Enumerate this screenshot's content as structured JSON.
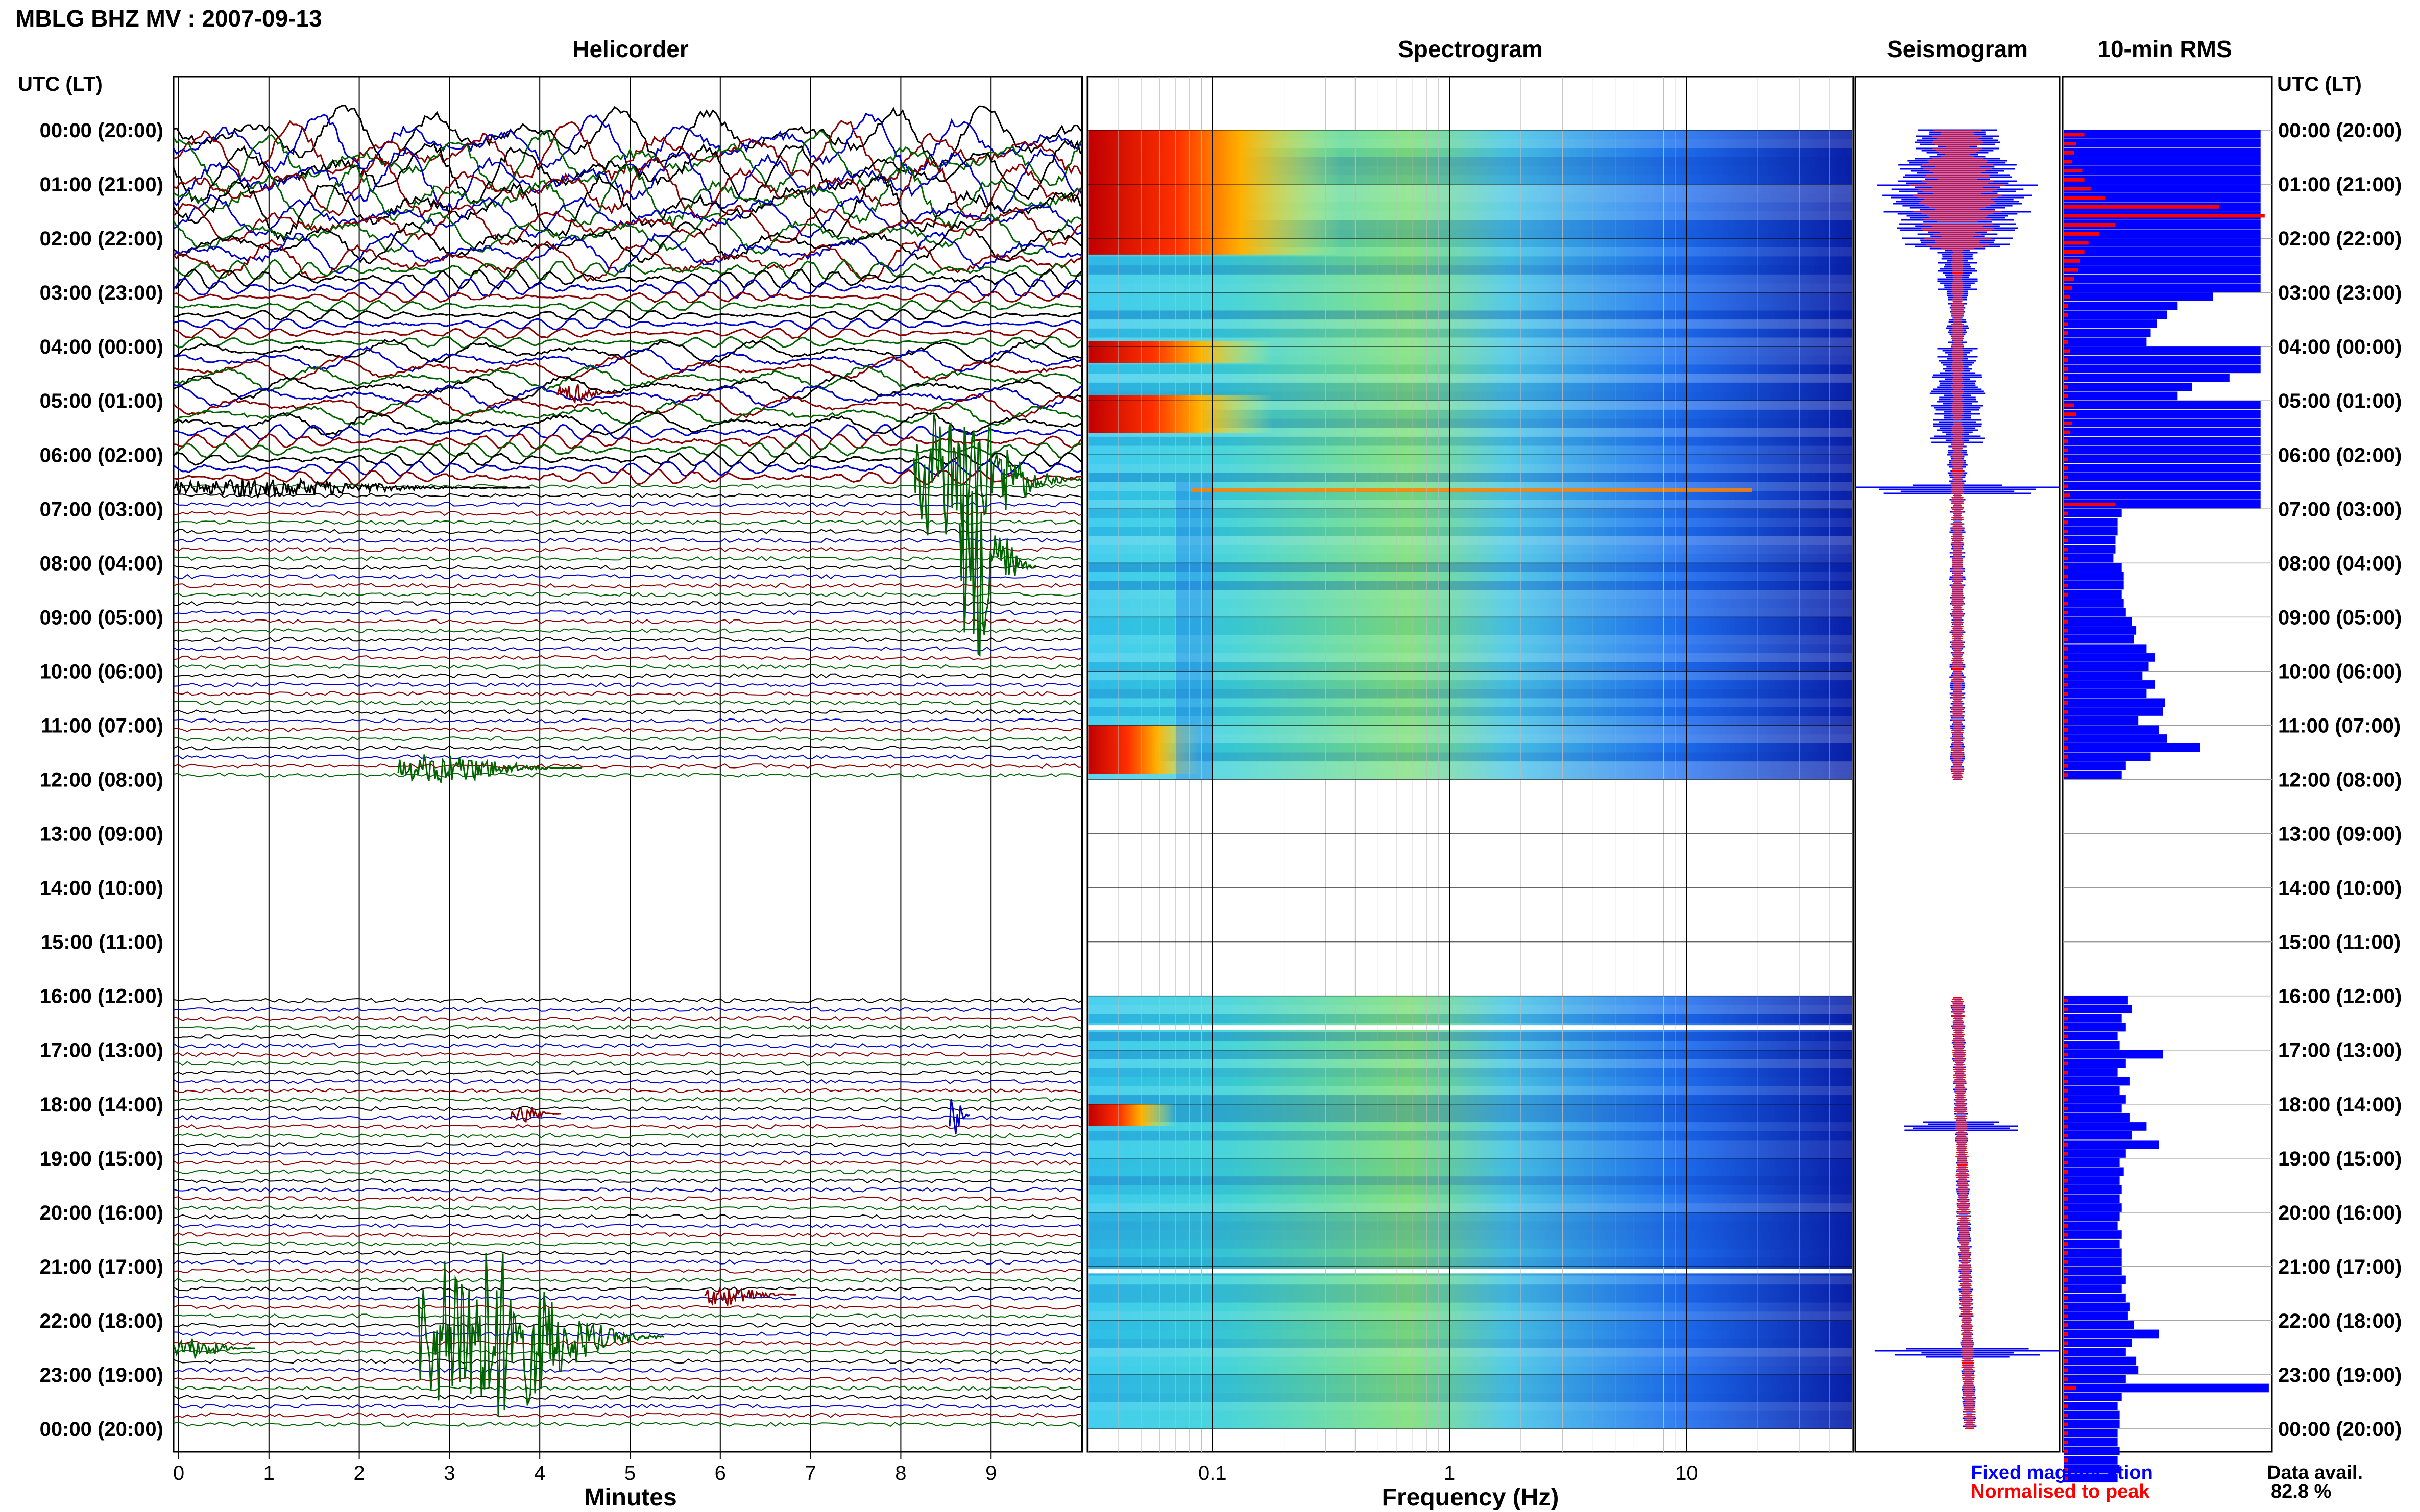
{
  "header": {
    "title": "MBLG BHZ MV : 2007-09-13"
  },
  "panels": {
    "helicorder": "Helicorder",
    "spectrogram": "Spectrogram",
    "seismogram": "Seismogram",
    "rms": "10-min RMS"
  },
  "axis": {
    "time_label": "UTC (LT)",
    "time_ticks": [
      "00:00 (20:00)",
      "01:00 (21:00)",
      "02:00 (22:00)",
      "03:00 (23:00)",
      "04:00 (00:00)",
      "05:00 (01:00)",
      "06:00 (02:00)",
      "07:00 (03:00)",
      "08:00 (04:00)",
      "09:00 (05:00)",
      "10:00 (06:00)",
      "11:00 (07:00)",
      "12:00 (08:00)",
      "13:00 (09:00)",
      "14:00 (10:00)",
      "15:00 (11:00)",
      "16:00 (12:00)",
      "17:00 (13:00)",
      "18:00 (14:00)",
      "19:00 (15:00)",
      "20:00 (16:00)",
      "21:00 (17:00)",
      "22:00 (18:00)",
      "23:00 (19:00)",
      "00:00 (20:00)"
    ],
    "minutes_label": "Minutes",
    "minutes_ticks": [
      "0",
      "1",
      "2",
      "3",
      "4",
      "5",
      "6",
      "7",
      "8",
      "9"
    ],
    "frequency_label": "Frequency (Hz)",
    "frequency_ticks": [
      "0.1",
      "1",
      "10"
    ]
  },
  "legend": {
    "fixed": "Fixed magnification",
    "normalised": "Normalised to peak"
  },
  "availability": {
    "label": "Data avail.",
    "value": "82.8 %"
  },
  "colors": {
    "trace_colors": [
      "#000000",
      "#0000cc",
      "#8b0000",
      "#006400"
    ],
    "fixed_magnification": "#0000ff",
    "normalised_to_peak": "#ff0000"
  },
  "chart_data": {
    "type": "heatmap",
    "station": "MBLG",
    "channel": "BHZ",
    "network": "MV",
    "date": "2007-09-13",
    "time_range_utc_hours": [
      0,
      24
    ],
    "data_gap_utc_hours": [
      12,
      16
    ],
    "helicorder_minutes_range": [
      0,
      10
    ],
    "spectrogram_freq_range_hz": [
      0.03,
      50
    ],
    "spectrogram_freq_scale": "log",
    "rms_10min": {
      "interval_minutes": 10,
      "fixed_magnification_relative": [
        0.95,
        0.95,
        0.95,
        0.95,
        0.95,
        0.95,
        0.95,
        0.95,
        0.95,
        0.95,
        0.95,
        0.95,
        0.95,
        0.95,
        0.95,
        0.95,
        0.95,
        0.95,
        0.72,
        0.55,
        0.5,
        0.45,
        0.42,
        0.4,
        0.95,
        0.95,
        0.95,
        0.8,
        0.62,
        0.55,
        0.95,
        0.95,
        0.95,
        0.95,
        0.95,
        0.95,
        0.95,
        0.95,
        0.95,
        0.95,
        0.95,
        0.95,
        0.28,
        0.26,
        0.26,
        0.25,
        0.25,
        0.24,
        0.28,
        0.29,
        0.29,
        0.28,
        0.29,
        0.3,
        0.33,
        0.35,
        0.34,
        0.4,
        0.44,
        0.41,
        0.38,
        0.44,
        0.4,
        0.49,
        0.48,
        0.36,
        0.46,
        0.5,
        0.66,
        0.42,
        0.3,
        0.28,
        null,
        null,
        null,
        null,
        null,
        null,
        null,
        null,
        null,
        null,
        null,
        null,
        null,
        null,
        null,
        null,
        null,
        null,
        null,
        null,
        null,
        null,
        null,
        null,
        0.31,
        0.33,
        0.28,
        0.3,
        0.26,
        0.27,
        0.48,
        0.3,
        0.26,
        0.32,
        0.27,
        0.3,
        0.28,
        0.32,
        0.4,
        0.33,
        0.46,
        0.3,
        0.27,
        0.29,
        0.27,
        0.28,
        0.27,
        0.28,
        0.27,
        0.26,
        0.28,
        0.27,
        0.28,
        0.28,
        0.28,
        0.3,
        0.28,
        0.3,
        0.32,
        0.31,
        0.34,
        0.46,
        0.33,
        0.3,
        0.35,
        0.36,
        0.3,
        0.99,
        0.28,
        0.26,
        0.27,
        0.27,
        0.26,
        0.26,
        0.27,
        0.26,
        0.27,
        0.26
      ],
      "normalised_to_peak_relative": [
        0.1,
        0.06,
        0.05,
        0.04,
        0.09,
        0.1,
        0.13,
        0.2,
        0.75,
        0.97,
        0.25,
        0.17,
        0.12,
        0.1,
        0.08,
        0.07,
        0.05,
        0.04,
        0.03,
        0.02,
        0.02,
        0.02,
        0.02,
        0.02,
        0.03,
        0.02,
        0.02,
        0.02,
        0.02,
        0.02,
        0.05,
        0.06,
        0.04,
        0.03,
        0.02,
        0.02,
        0.02,
        0.02,
        0.02,
        0.02,
        0.03,
        0.25,
        0.02,
        0.02,
        0.02,
        0.02,
        0.02,
        0.02,
        0.02,
        0.02,
        0.02,
        0.02,
        0.02,
        0.02,
        0.02,
        0.02,
        0.02,
        0.02,
        0.02,
        0.02,
        0.02,
        0.02,
        0.02,
        0.02,
        0.02,
        0.02,
        0.02,
        0.02,
        0.02,
        0.02,
        0.02,
        0.02,
        null,
        null,
        null,
        null,
        null,
        null,
        null,
        null,
        null,
        null,
        null,
        null,
        null,
        null,
        null,
        null,
        null,
        null,
        null,
        null,
        null,
        null,
        null,
        null,
        0.02,
        0.02,
        0.02,
        0.02,
        0.02,
        0.02,
        0.02,
        0.02,
        0.02,
        0.02,
        0.02,
        0.02,
        0.02,
        0.02,
        0.02,
        0.02,
        0.02,
        0.02,
        0.02,
        0.02,
        0.02,
        0.02,
        0.02,
        0.02,
        0.02,
        0.02,
        0.02,
        0.02,
        0.02,
        0.02,
        0.02,
        0.02,
        0.02,
        0.02,
        0.02,
        0.02,
        0.02,
        0.02,
        0.02,
        0.02,
        0.02,
        0.02,
        0.02,
        0.06,
        0.02,
        0.02,
        0.02,
        0.02,
        0.02,
        0.02,
        0.02,
        0.02,
        0.02,
        0.02
      ]
    }
  }
}
